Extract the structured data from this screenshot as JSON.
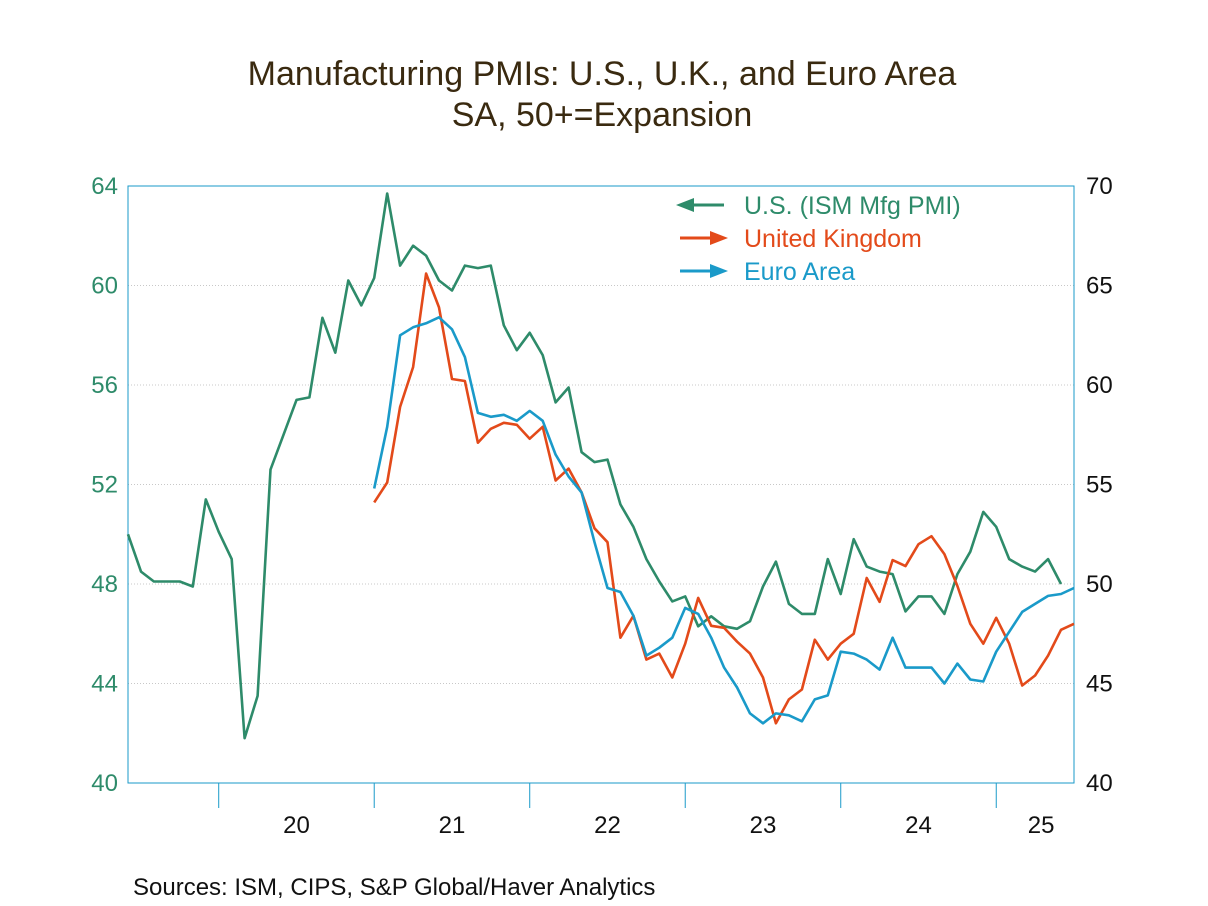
{
  "chart_data": {
    "type": "line",
    "title": "Manufacturing PMIs: U.S., U.K., and Euro Area",
    "subtitle": "SA, 50+=Expansion",
    "x_start": "2019-06",
    "x_tick_labels": [
      "20",
      "21",
      "22",
      "23",
      "24",
      "25"
    ],
    "left_axis": {
      "ylim": [
        40,
        64
      ],
      "ticks": [
        "64",
        "60",
        "56",
        "52",
        "48",
        "44",
        "40"
      ],
      "color": "#2e8b6a"
    },
    "right_axis": {
      "ylim": [
        40,
        70
      ],
      "ticks": [
        "70",
        "65",
        "60",
        "55",
        "50",
        "45",
        "40"
      ],
      "color": "#111111"
    },
    "series": [
      {
        "name": "U.S. (ISM Mfg PMI)",
        "axis": "left",
        "color": "#2e8b6a",
        "legend_arrow": "left",
        "start_index": 0,
        "values": [
          50.0,
          48.5,
          48.1,
          48.1,
          48.1,
          47.9,
          51.4,
          50.1,
          49.0,
          41.8,
          43.5,
          52.6,
          54.0,
          55.4,
          55.5,
          58.7,
          57.3,
          60.2,
          59.2,
          60.3,
          63.7,
          60.8,
          61.6,
          61.2,
          60.2,
          59.8,
          60.8,
          60.7,
          60.8,
          58.4,
          57.4,
          58.1,
          57.2,
          55.3,
          55.9,
          53.3,
          52.9,
          53.0,
          51.2,
          50.3,
          49.0,
          48.1,
          47.3,
          47.5,
          46.3,
          46.7,
          46.3,
          46.2,
          46.5,
          47.9,
          48.9,
          47.2,
          46.8,
          46.8,
          49.0,
          47.6,
          49.8,
          48.7,
          48.5,
          48.4,
          46.9,
          47.5,
          47.5,
          46.8,
          48.4,
          49.3,
          50.9,
          50.3,
          49.0,
          48.7,
          48.5,
          49.0,
          48.0
        ]
      },
      {
        "name": "United Kingdom",
        "axis": "right",
        "color": "#e34a1a",
        "legend_arrow": "right",
        "start_index": 19,
        "values": [
          54.1,
          55.1,
          58.9,
          60.9,
          65.6,
          63.9,
          60.3,
          60.2,
          57.1,
          57.8,
          58.1,
          58.0,
          57.3,
          57.9,
          55.2,
          55.8,
          54.6,
          52.8,
          52.1,
          47.3,
          48.4,
          46.2,
          46.5,
          45.3,
          47.0,
          49.3,
          47.9,
          47.8,
          47.1,
          46.5,
          45.3,
          43.0,
          44.2,
          44.7,
          47.2,
          46.2,
          47.0,
          47.5,
          50.3,
          49.1,
          51.2,
          50.9,
          52.0,
          52.4,
          51.5,
          49.9,
          48.0,
          47.0,
          48.3,
          47.0,
          44.9,
          45.4,
          46.4,
          47.7,
          48.0
        ]
      },
      {
        "name": "Euro Area",
        "axis": "right",
        "color": "#1a9ac9",
        "legend_arrow": "right",
        "start_index": 19,
        "values": [
          54.8,
          57.9,
          62.5,
          62.9,
          63.1,
          63.4,
          62.8,
          61.4,
          58.6,
          58.4,
          58.5,
          58.2,
          58.7,
          58.2,
          56.5,
          55.4,
          54.6,
          52.1,
          49.8,
          49.6,
          48.4,
          46.4,
          46.8,
          47.3,
          48.8,
          48.5,
          47.3,
          45.8,
          44.8,
          43.5,
          43.0,
          43.5,
          43.4,
          43.1,
          44.2,
          44.4,
          46.6,
          46.5,
          46.2,
          45.7,
          47.3,
          45.8,
          45.8,
          45.8,
          45.0,
          46.0,
          45.2,
          45.1,
          46.6,
          47.6,
          48.6,
          49.0,
          49.4,
          49.5,
          49.8
        ]
      }
    ],
    "legend_position": "top-right",
    "grid": true,
    "source": "Sources:   ISM, CIPS, S&P Global/Haver Analytics"
  }
}
